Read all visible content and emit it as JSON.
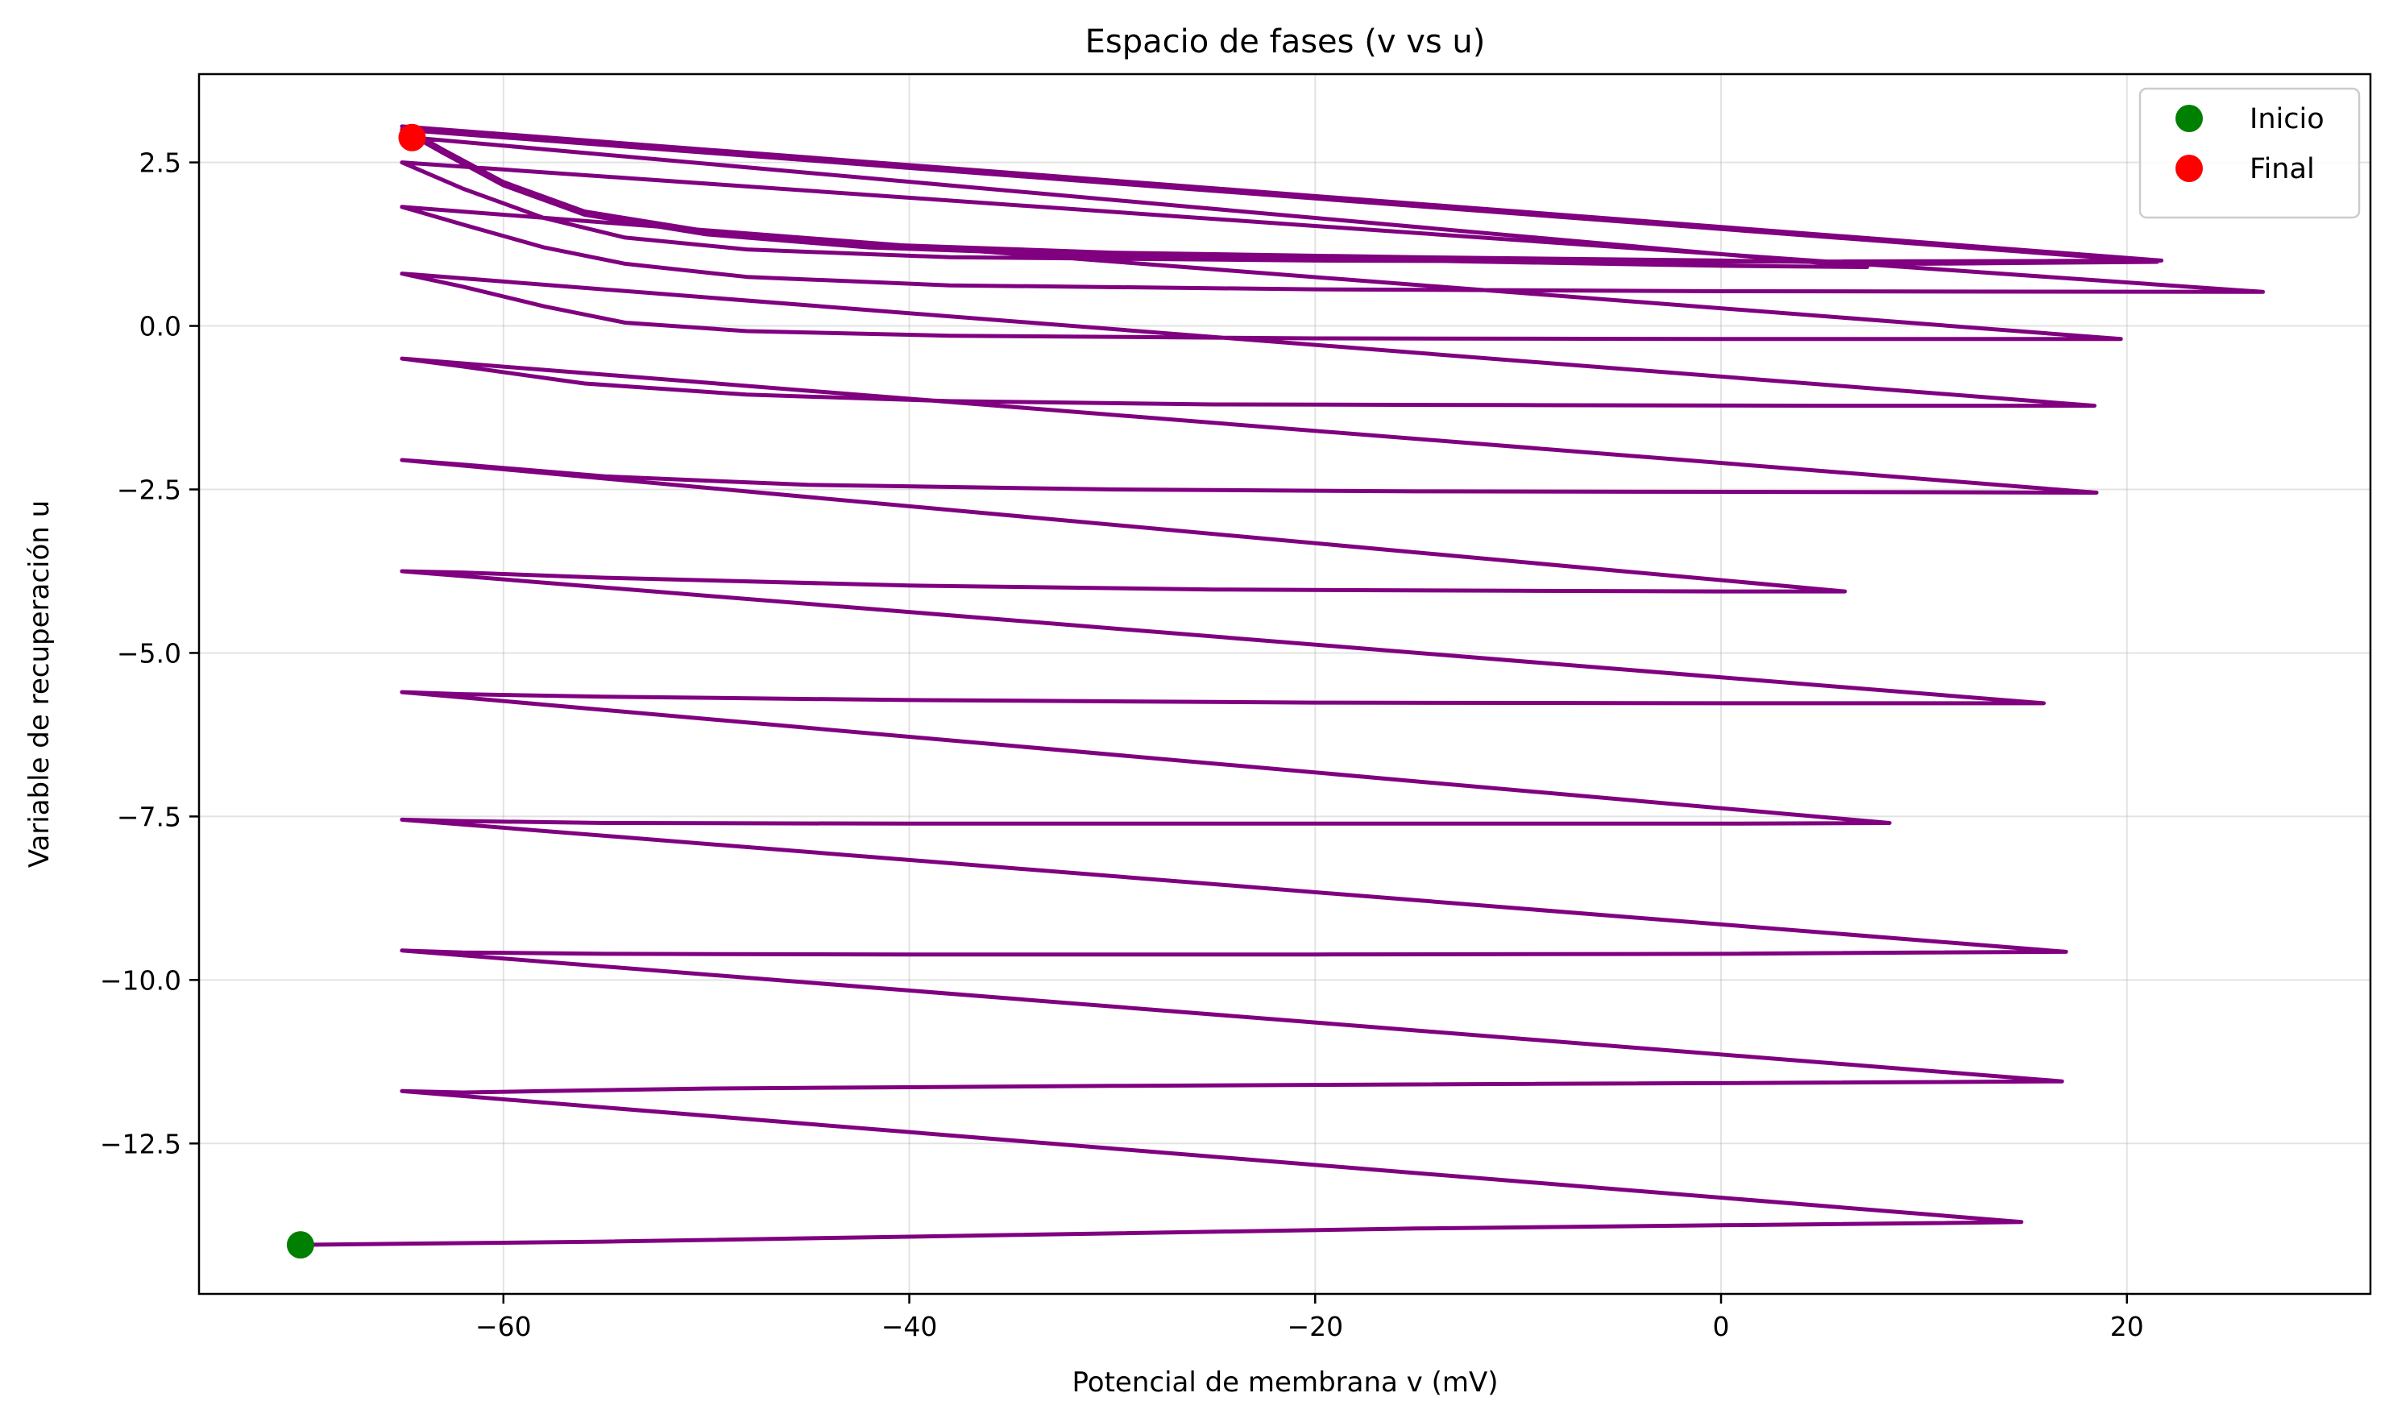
{
  "chart_data": {
    "type": "line",
    "title": "Espacio de fases (v vs u)",
    "xlabel": "Potencial de membrana v (mV)",
    "ylabel": "Variable de recuperación u",
    "xlim": [
      -75,
      32
    ],
    "ylim": [
      -14.8,
      3.85
    ],
    "xticks": [
      -60,
      -40,
      -20,
      0,
      20
    ],
    "xtick_labels": [
      "−60",
      "−40",
      "−20",
      "0",
      "20"
    ],
    "yticks": [
      2.5,
      0.0,
      -2.5,
      -5.0,
      -7.5,
      -10.0,
      -12.5
    ],
    "ytick_labels": [
      "2.5",
      "0.0",
      "−2.5",
      "−5.0",
      "−7.5",
      "−10.0",
      "−12.5"
    ],
    "grid": true,
    "legend_position": "upper-right",
    "colors": {
      "trajectory": "#800080",
      "start": "#008000",
      "end": "#ff0000"
    },
    "series": [
      {
        "name": "",
        "color": "#800080",
        "style": "line",
        "points": [
          [
            -70.0,
            -14.05
          ],
          [
            -55,
            -14.0
          ],
          [
            -35,
            -13.9
          ],
          [
            -15,
            -13.8
          ],
          [
            0,
            -13.75
          ],
          [
            10,
            -13.72
          ],
          [
            14.8,
            -13.7
          ],
          [
            -65.0,
            -11.7
          ],
          [
            -62,
            -11.72
          ],
          [
            -58,
            -11.7
          ],
          [
            -50,
            -11.66
          ],
          [
            -30,
            -11.62
          ],
          [
            -10,
            -11.59
          ],
          [
            5,
            -11.57
          ],
          [
            16.8,
            -11.55
          ],
          [
            -65.0,
            -9.55
          ],
          [
            -62,
            -9.58
          ],
          [
            -55,
            -9.6
          ],
          [
            -40,
            -9.61
          ],
          [
            -20,
            -9.61
          ],
          [
            0,
            -9.6
          ],
          [
            10,
            -9.58
          ],
          [
            17.0,
            -9.57
          ],
          [
            -65.0,
            -7.55
          ],
          [
            -62,
            -7.57
          ],
          [
            -55,
            -7.6
          ],
          [
            -40,
            -7.61
          ],
          [
            -20,
            -7.61
          ],
          [
            0,
            -7.61
          ],
          [
            8.3,
            -7.6
          ],
          [
            -65.0,
            -5.6
          ],
          [
            -62,
            -5.63
          ],
          [
            -55,
            -5.67
          ],
          [
            -40,
            -5.72
          ],
          [
            -20,
            -5.76
          ],
          [
            0,
            -5.77
          ],
          [
            10,
            -5.77
          ],
          [
            15.9,
            -5.77
          ],
          [
            -65.0,
            -3.75
          ],
          [
            -62,
            -3.77
          ],
          [
            -55,
            -3.85
          ],
          [
            -40,
            -3.97
          ],
          [
            -25,
            -4.03
          ],
          [
            -10,
            -4.05
          ],
          [
            0,
            -4.06
          ],
          [
            6.1,
            -4.06
          ],
          [
            -65.0,
            -2.05
          ],
          [
            -62,
            -2.12
          ],
          [
            -55,
            -2.3
          ],
          [
            -45,
            -2.43
          ],
          [
            -30,
            -2.5
          ],
          [
            -15,
            -2.53
          ],
          [
            5,
            -2.54
          ],
          [
            18.5,
            -2.55
          ],
          [
            -65.0,
            -0.5
          ],
          [
            -62,
            -0.62
          ],
          [
            -56,
            -0.88
          ],
          [
            -48,
            -1.05
          ],
          [
            -38,
            -1.15
          ],
          [
            -25,
            -1.2
          ],
          [
            -10,
            -1.21
          ],
          [
            5,
            -1.22
          ],
          [
            18.4,
            -1.22
          ],
          [
            -65.0,
            0.8
          ],
          [
            -62,
            0.6
          ],
          [
            -58,
            0.3
          ],
          [
            -54,
            0.05
          ],
          [
            -48,
            -0.08
          ],
          [
            -38,
            -0.15
          ],
          [
            -20,
            -0.19
          ],
          [
            0,
            -0.2
          ],
          [
            19.7,
            -0.2
          ],
          [
            -65.0,
            1.82
          ],
          [
            -62,
            1.55
          ],
          [
            -58,
            1.2
          ],
          [
            -54,
            0.95
          ],
          [
            -48,
            0.75
          ],
          [
            -38,
            0.62
          ],
          [
            -20,
            0.56
          ],
          [
            0,
            0.53
          ],
          [
            26.7,
            0.52
          ],
          [
            -65.0,
            2.5
          ],
          [
            -62,
            2.1
          ],
          [
            -58,
            1.65
          ],
          [
            -54,
            1.35
          ],
          [
            -48,
            1.17
          ],
          [
            -38,
            1.05
          ],
          [
            -20,
            1.0
          ],
          [
            0,
            0.98
          ],
          [
            21.7,
            1.0
          ],
          [
            -65.0,
            3.05
          ],
          [
            -63,
            2.7
          ],
          [
            -60,
            2.2
          ],
          [
            -56,
            1.75
          ],
          [
            -50,
            1.45
          ],
          [
            -42,
            1.25
          ],
          [
            -30,
            1.12
          ],
          [
            -15,
            1.05
          ],
          [
            0,
            1.0
          ],
          [
            10,
            0.95
          ],
          [
            21.5,
            0.98
          ],
          [
            -65.0,
            3.0
          ],
          [
            -63,
            2.65
          ],
          [
            -60,
            2.15
          ],
          [
            -56,
            1.7
          ],
          [
            -50,
            1.4
          ],
          [
            -42,
            1.2
          ],
          [
            -30,
            1.07
          ],
          [
            -15,
            1.0
          ],
          [
            0,
            0.92
          ],
          [
            7.2,
            0.9
          ],
          [
            -64.5,
            2.88
          ]
        ]
      },
      {
        "name": "Inicio",
        "color": "#008000",
        "style": "marker",
        "points": [
          [
            -70.0,
            -14.05
          ]
        ]
      },
      {
        "name": "Final",
        "color": "#ff0000",
        "style": "marker",
        "points": [
          [
            -64.5,
            2.88
          ]
        ]
      }
    ]
  }
}
